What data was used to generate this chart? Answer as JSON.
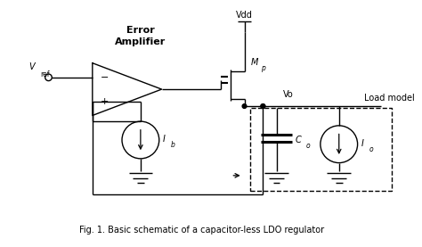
{
  "background_color": "#ffffff",
  "caption": "Fig. 1. Basic schematic of a capacitor-less LDO regulator",
  "error_amp_label": [
    "Error",
    "Amplifier"
  ],
  "vref_label": "V",
  "vref_sub": "ref",
  "vdd_label": "Vdd",
  "mp_label": "M",
  "mp_sub": "p",
  "vo_label": "Vo",
  "load_model_label": "Load model",
  "ib_label": "I",
  "ib_sub": "b",
  "co_label": "C",
  "co_sub": "o",
  "io_label": "I",
  "io_sub": "o"
}
